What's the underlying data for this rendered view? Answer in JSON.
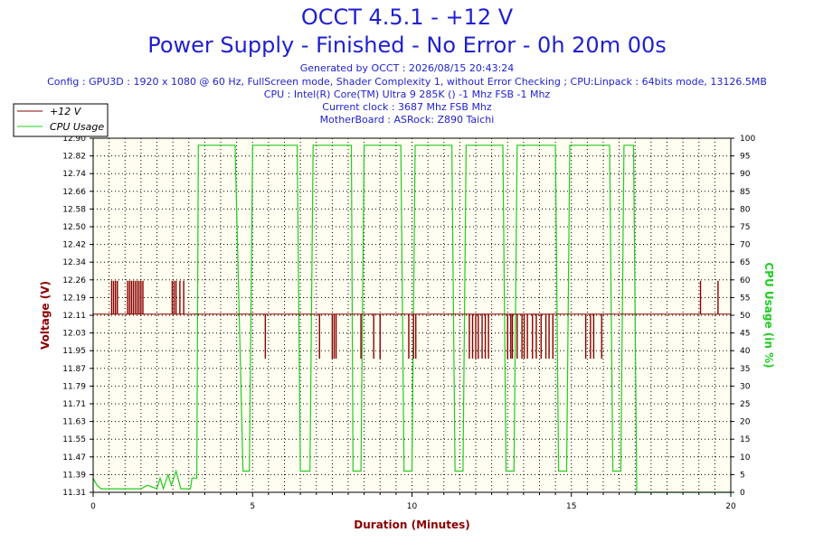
{
  "header": {
    "title_line1": "OCCT 4.5.1 - +12 V",
    "title_line2": "Power Supply - Finished - No Error - 0h 20m 00s",
    "generated": "Generated by OCCT : 2026/08/15 20:43:24",
    "config": "Config : GPU3D : 1920 x 1080 @ 60 Hz, FullScreen mode, Shader Complexity 1, without Error Checking ; CPU:Linpack : 64bits mode, 13126.5MB",
    "cpu": "CPU : Intel(R) Core(TM) Ultra 9 285K () -1 Mhz FSB -1 Mhz",
    "clock": "Current clock : 3687 Mhz FSB  Mhz",
    "board": "MotherBoard : ASRock: Z890 Taichi"
  },
  "colors": {
    "voltage": "#8b0000",
    "cpu": "#22cc22",
    "plot_bg": "#fffef0",
    "grid": "#000000"
  },
  "chart_data": {
    "type": "line",
    "xlabel": "Duration (Minutes)",
    "ylabel": "Voltage (V)",
    "y2label": "CPU Usage (in %)",
    "xlim": [
      0,
      20
    ],
    "ylim": [
      11.31,
      12.9
    ],
    "y2lim": [
      0,
      100
    ],
    "x_ticks": [
      "0",
      "5",
      "10",
      "15",
      "20"
    ],
    "y_ticks": [
      "11.31",
      "11.39",
      "11.47",
      "11.55",
      "11.63",
      "11.71",
      "11.79",
      "11.87",
      "11.95",
      "12.03",
      "12.11",
      "12.19",
      "12.26",
      "12.34",
      "12.42",
      "12.50",
      "12.58",
      "12.66",
      "12.74",
      "12.82",
      "12.90"
    ],
    "y2_ticks": [
      "0",
      "5",
      "10",
      "15",
      "20",
      "25",
      "30",
      "35",
      "40",
      "45",
      "50",
      "55",
      "60",
      "65",
      "70",
      "75",
      "80",
      "85",
      "90",
      "95",
      "100"
    ],
    "legend": [
      {
        "name": "+12 V",
        "color": "#8b0000"
      },
      {
        "name": "CPU Usage",
        "color": "#22cc22"
      }
    ],
    "legend_position": "top-left",
    "grid": true,
    "series": [
      {
        "name": "+12 V",
        "axis": "left",
        "baseline": 12.11,
        "spikes_up": [
          0.58,
          0.64,
          0.7,
          0.76,
          1.08,
          1.14,
          1.2,
          1.26,
          1.32,
          1.38,
          1.44,
          1.5,
          1.56,
          2.48,
          2.54,
          2.6,
          2.72,
          2.84,
          19.05,
          19.6
        ],
        "spike_up_value": 12.26,
        "spikes_down": [
          5.4,
          7.1,
          7.5,
          7.56,
          7.62,
          8.4,
          8.8,
          9.0,
          9.9,
          10.05,
          10.12,
          11.8,
          11.9,
          12.0,
          12.08,
          12.2,
          12.3,
          12.4,
          13.0,
          13.1,
          13.15,
          13.3,
          13.45,
          13.52,
          13.62,
          13.78,
          13.9,
          14.05,
          14.2,
          14.3,
          14.42,
          15.45,
          15.6,
          15.7,
          15.95
        ],
        "spike_down_value": 11.91
      },
      {
        "name": "CPU Usage",
        "axis": "right",
        "points": [
          [
            0.0,
            4
          ],
          [
            0.12,
            2
          ],
          [
            0.25,
            1
          ],
          [
            1.5,
            1
          ],
          [
            1.7,
            2
          ],
          [
            2.0,
            1
          ],
          [
            2.1,
            4
          ],
          [
            2.2,
            1
          ],
          [
            2.35,
            5
          ],
          [
            2.45,
            2
          ],
          [
            2.6,
            6
          ],
          [
            2.75,
            1
          ],
          [
            3.05,
            1
          ],
          [
            3.1,
            4
          ],
          [
            3.25,
            4
          ],
          [
            3.3,
            98
          ],
          [
            4.45,
            98
          ],
          [
            4.7,
            6
          ],
          [
            4.9,
            6
          ],
          [
            5.0,
            98
          ],
          [
            6.4,
            98
          ],
          [
            6.5,
            6
          ],
          [
            6.8,
            6
          ],
          [
            6.9,
            98
          ],
          [
            8.1,
            98
          ],
          [
            8.15,
            6
          ],
          [
            8.4,
            6
          ],
          [
            8.5,
            98
          ],
          [
            9.65,
            98
          ],
          [
            9.75,
            6
          ],
          [
            10.0,
            6
          ],
          [
            10.1,
            98
          ],
          [
            11.25,
            98
          ],
          [
            11.35,
            6
          ],
          [
            11.6,
            6
          ],
          [
            11.7,
            98
          ],
          [
            12.85,
            98
          ],
          [
            12.95,
            6
          ],
          [
            13.2,
            6
          ],
          [
            13.3,
            98
          ],
          [
            14.5,
            98
          ],
          [
            14.6,
            6
          ],
          [
            14.85,
            6
          ],
          [
            14.95,
            98
          ],
          [
            16.2,
            98
          ],
          [
            16.3,
            6
          ],
          [
            16.55,
            6
          ],
          [
            16.65,
            98
          ],
          [
            16.95,
            98
          ],
          [
            17.05,
            0
          ],
          [
            20.0,
            0
          ]
        ]
      }
    ]
  }
}
